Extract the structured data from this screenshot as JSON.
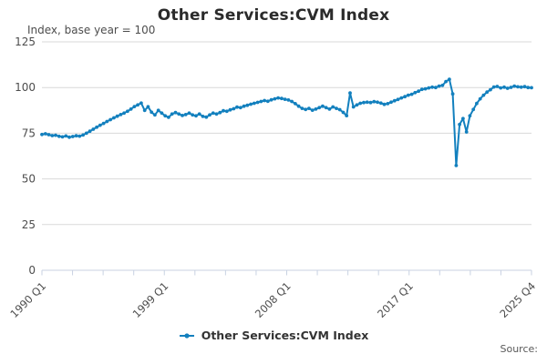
{
  "title": "Other Services:CVM Index",
  "units_label": "Index, base year = 100",
  "source_label": "Source:",
  "legend": {
    "label": "Other Services:CVM Index"
  },
  "colors": {
    "line": "#1380be",
    "grid": "#d9d9d9",
    "axis": "#c8d2e2",
    "tick_text": "#4d4d4d",
    "title_text": "#2b2b2b",
    "legend_text": "#333333",
    "source_text": "#595959"
  },
  "chart_data": {
    "type": "line",
    "title": "Other Services:CVM Index",
    "ylabel": "Index, base year = 100",
    "ylim": [
      0,
      125
    ],
    "yticks": [
      0,
      25,
      50,
      75,
      100,
      125
    ],
    "grid": "horizontal",
    "legend_position": "bottom-center",
    "x_start": "1990 Q1",
    "x_end": "2025 Q4",
    "frequency": "quarterly",
    "xtick_count": 17,
    "xtick_labels": [
      "1990 Q1",
      "1999 Q1",
      "2008 Q1",
      "2017 Q1",
      "2025 Q4"
    ],
    "xtick_label_positions": [
      0,
      4,
      8,
      12,
      16
    ],
    "series": [
      {
        "name": "Other Services:CVM Index",
        "color": "#1380be",
        "values": [
          74.3,
          74.7,
          74.2,
          73.7,
          73.9,
          73.3,
          73.0,
          73.5,
          72.8,
          73.2,
          73.6,
          73.4,
          74.0,
          75.0,
          76.1,
          77.2,
          78.3,
          79.4,
          80.4,
          81.4,
          82.4,
          83.4,
          84.3,
          85.2,
          86.0,
          87.0,
          88.2,
          89.6,
          90.5,
          91.5,
          87.5,
          89.5,
          86.5,
          85.0,
          87.5,
          86.0,
          84.5,
          83.7,
          85.5,
          86.3,
          85.5,
          84.7,
          85.2,
          86.0,
          85.0,
          84.5,
          85.5,
          84.2,
          83.8,
          85.0,
          86.0,
          85.5,
          86.3,
          87.3,
          87.0,
          87.8,
          88.4,
          89.3,
          89.0,
          89.8,
          90.3,
          90.9,
          91.4,
          91.9,
          92.4,
          92.9,
          92.5,
          93.3,
          93.8,
          94.3,
          94.0,
          93.6,
          93.2,
          92.4,
          91.2,
          89.8,
          88.6,
          88.0,
          88.6,
          87.6,
          88.2,
          89.0,
          89.8,
          89.0,
          88.2,
          89.4,
          88.6,
          87.9,
          86.4,
          84.6,
          97.0,
          89.4,
          90.5,
          91.4,
          91.8,
          92.0,
          91.8,
          92.3,
          92.0,
          91.5,
          90.8,
          91.2,
          92.0,
          92.8,
          93.5,
          94.3,
          95.0,
          95.8,
          96.3,
          97.2,
          98.0,
          99.0,
          99.3,
          99.8,
          100.2,
          100.0,
          100.8,
          101.2,
          103.3,
          104.5,
          96.5,
          57.3,
          79.8,
          83.0,
          75.7,
          84.5,
          88.0,
          91.3,
          93.8,
          95.8,
          97.5,
          98.8,
          100.3,
          100.6,
          99.8,
          100.2,
          99.6,
          100.1,
          100.8,
          100.4,
          100.2,
          100.5,
          100.0,
          99.9
        ]
      }
    ]
  }
}
